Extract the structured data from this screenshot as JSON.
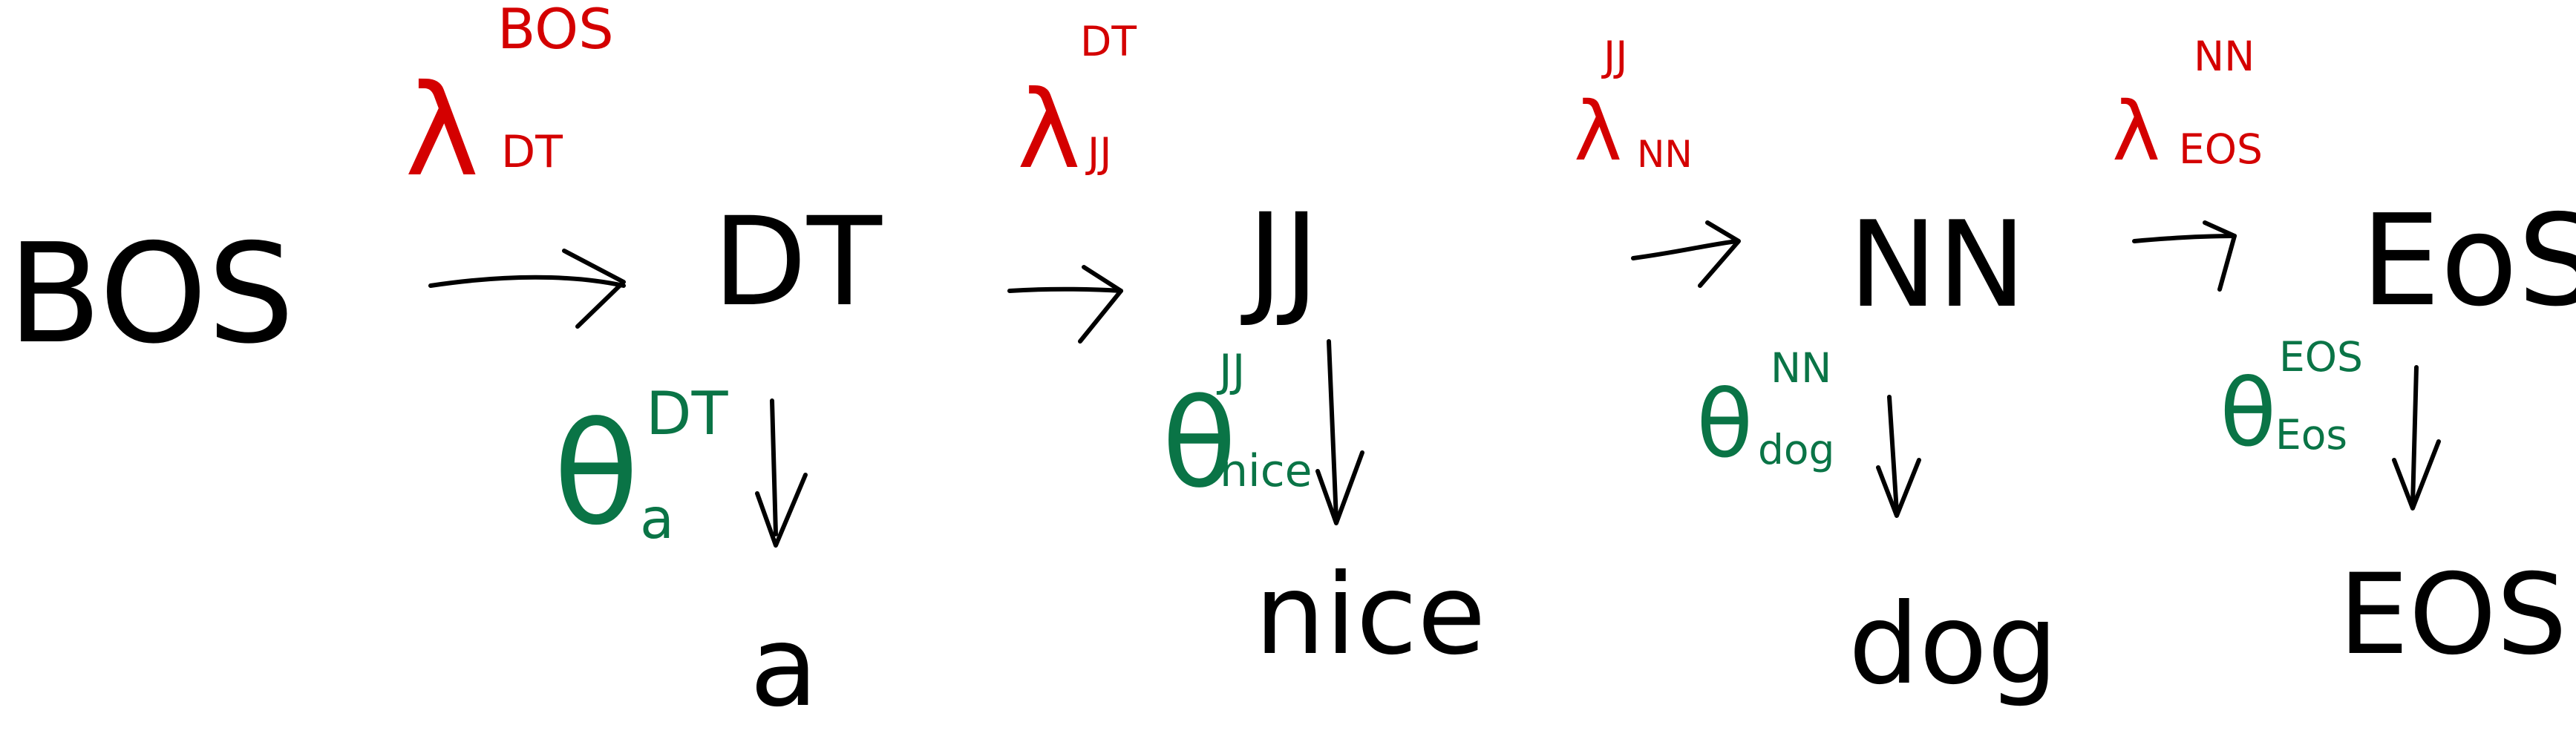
{
  "colors": {
    "ink": "#000000",
    "transition": "#d40000",
    "emission": "#0a7446"
  },
  "states": [
    "BOS",
    "DT",
    "JJ",
    "NN",
    "EoS"
  ],
  "words": [
    "a",
    "nice",
    "dog",
    "EOS"
  ],
  "transitions": [
    {
      "symbol": "λ",
      "sup": "BOS",
      "sub": "DT"
    },
    {
      "symbol": "λ",
      "sup": "DT",
      "sub": "JJ"
    },
    {
      "symbol": "λ",
      "sup": "JJ",
      "sub": "NN"
    },
    {
      "symbol": "λ",
      "sup": "NN",
      "sub": "EOS"
    }
  ],
  "emissions": [
    {
      "symbol": "θ",
      "sup": "DT",
      "sub": "a"
    },
    {
      "symbol": "θ",
      "sup": "JJ",
      "sub": "nice"
    },
    {
      "symbol": "θ",
      "sup": "NN",
      "sub": "dog"
    },
    {
      "symbol": "θ",
      "sup": "EOS",
      "sub": "Eos"
    }
  ]
}
